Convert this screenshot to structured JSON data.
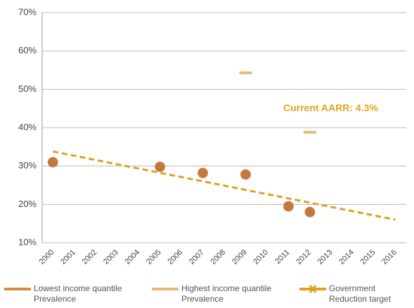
{
  "chart_data": {
    "type": "line",
    "categories": [
      "2000",
      "2001",
      "2002",
      "2003",
      "2004",
      "2005",
      "2006",
      "2007",
      "2008",
      "2009",
      "2010",
      "2011",
      "2012",
      "2013",
      "2014",
      "2015",
      "2016"
    ],
    "ylim": [
      10,
      70
    ],
    "yticks": [
      {
        "value": 10,
        "label": "10%"
      },
      {
        "value": 20,
        "label": "20%"
      },
      {
        "value": 30,
        "label": "30%"
      },
      {
        "value": 40,
        "label": "40%"
      },
      {
        "value": 50,
        "label": "50%"
      },
      {
        "value": 60,
        "label": "60%"
      },
      {
        "value": 70,
        "label": "70%"
      }
    ],
    "grid": true,
    "annotation": "Current AARR: 4.3%",
    "series": [
      {
        "name": "Lowest income quantile Prevalence",
        "color": "#d98a3e",
        "marker": "circle",
        "x": [
          "2000",
          "2005",
          "2007",
          "2009",
          "2011",
          "2012"
        ],
        "values": [
          31,
          29.8,
          28.2,
          27.8,
          19.5,
          18
        ]
      },
      {
        "name": "Highest income quantile Prevalence",
        "color": "#e8b87a",
        "marker": "dash",
        "x": [
          "2009",
          "2012"
        ],
        "values": [
          54.3,
          38.8
        ]
      },
      {
        "name": "Government Reduction target",
        "color": "#e0a020",
        "marker": "dashed-line",
        "x": [
          "2000",
          "2016"
        ],
        "values": [
          33.8,
          16
        ]
      }
    ]
  }
}
